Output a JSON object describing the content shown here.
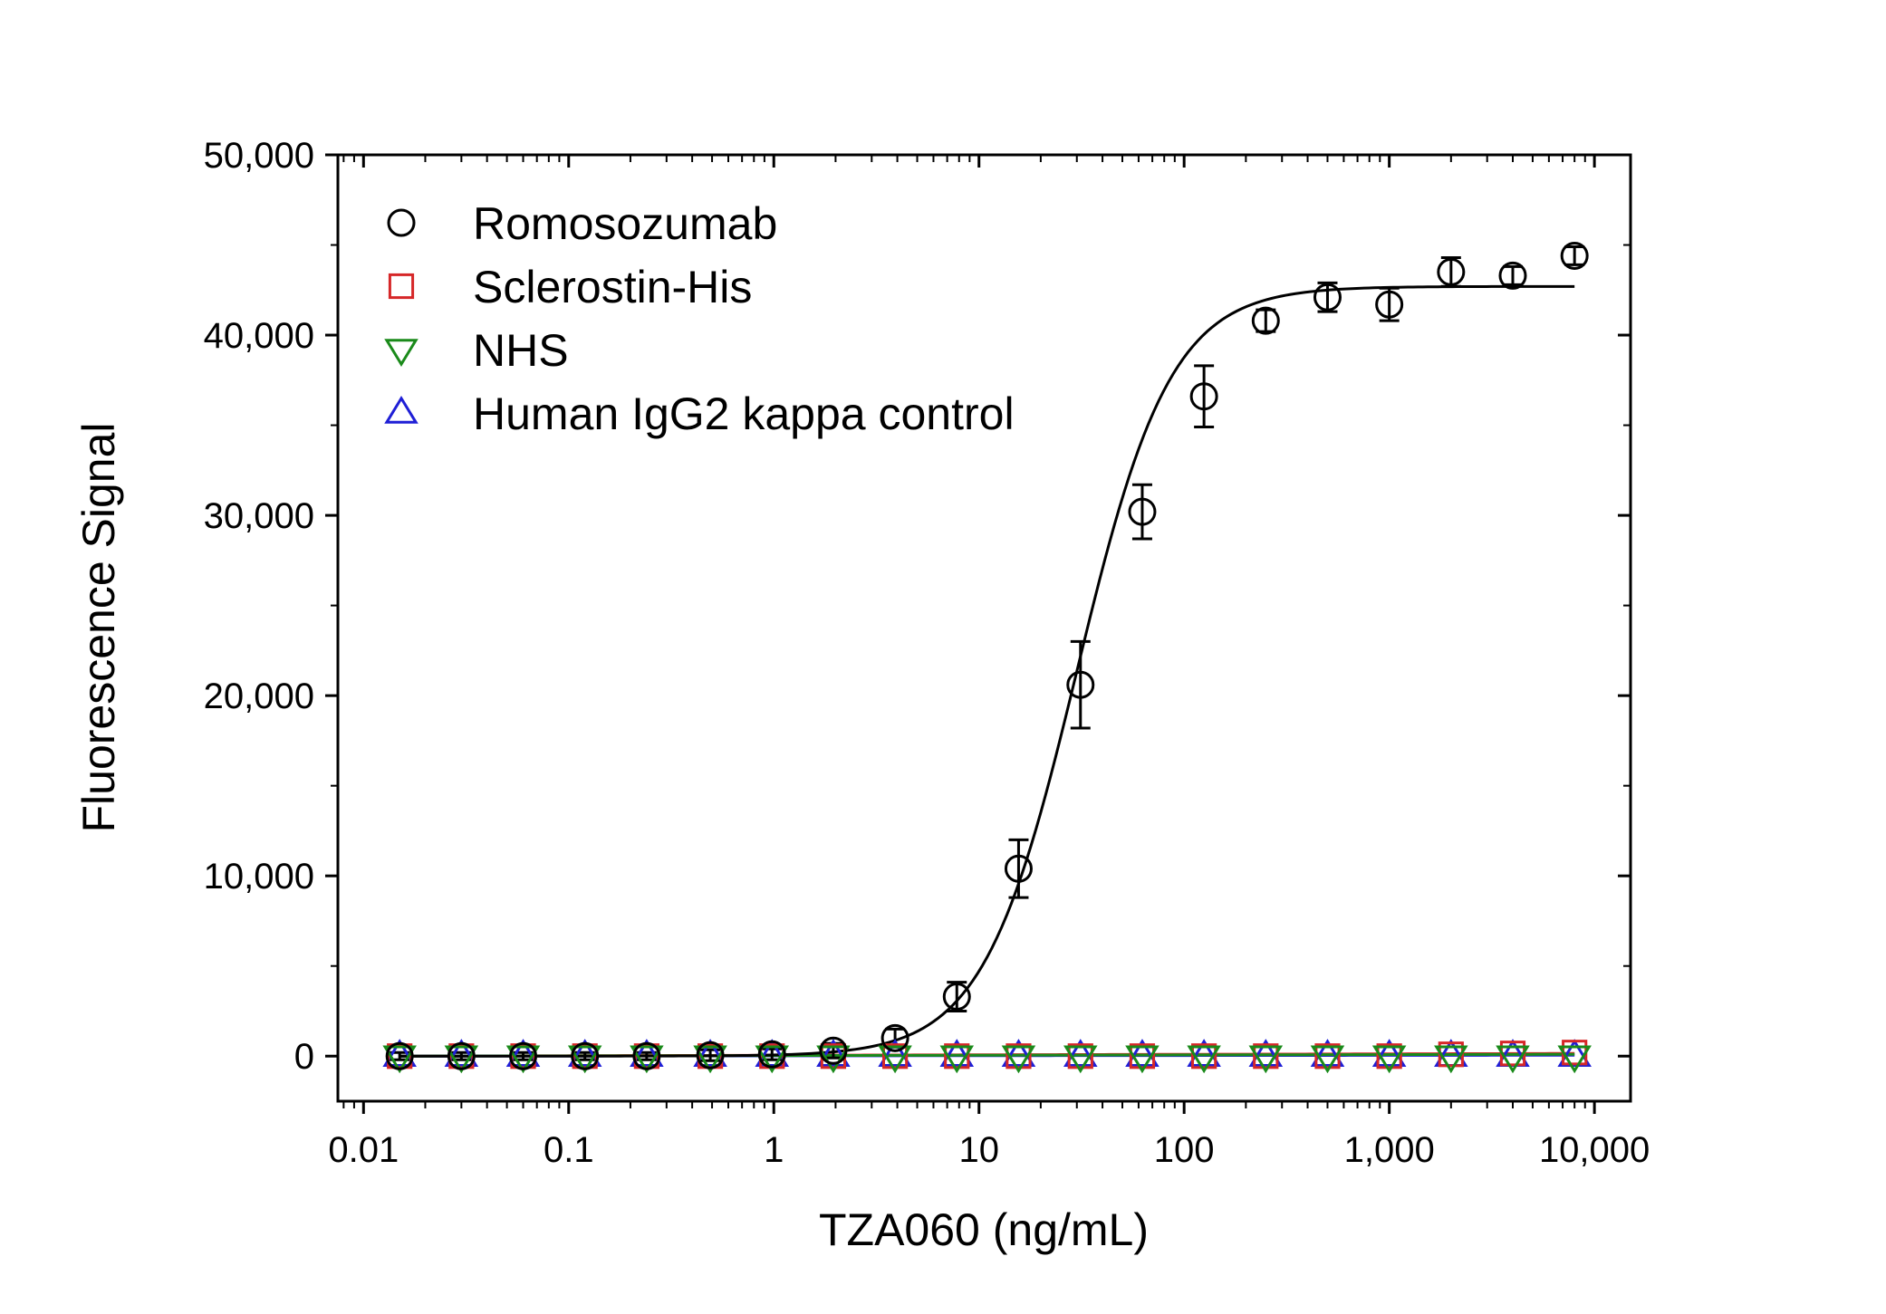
{
  "chart_data": {
    "type": "scatter",
    "title": "",
    "xlabel": "TZA060 (ng/mL)",
    "ylabel": "Fluorescence Signal",
    "xscale": "log",
    "xlim": [
      0.0075,
      15000
    ],
    "ylim": [
      -2500,
      50000
    ],
    "x_ticks": [
      {
        "value": 0.01,
        "label": "0.01"
      },
      {
        "value": 0.1,
        "label": "0.1"
      },
      {
        "value": 1,
        "label": "1"
      },
      {
        "value": 10,
        "label": "10"
      },
      {
        "value": 100,
        "label": "100"
      },
      {
        "value": 1000,
        "label": "1,000"
      },
      {
        "value": 10000,
        "label": "10,000"
      }
    ],
    "y_ticks": [
      {
        "value": 0,
        "label": "0"
      },
      {
        "value": 10000,
        "label": "10,000"
      },
      {
        "value": 20000,
        "label": "20,000"
      },
      {
        "value": 30000,
        "label": "30,000"
      },
      {
        "value": 40000,
        "label": "40,000"
      },
      {
        "value": 50000,
        "label": "50,000"
      }
    ],
    "grid": false,
    "legend_position": "top-left",
    "x": [
      0.015,
      0.03,
      0.06,
      0.12,
      0.24,
      0.49,
      0.98,
      1.95,
      3.9,
      7.8,
      15.6,
      31.25,
      62.5,
      125,
      250,
      500,
      1000,
      2000,
      4000,
      8000
    ],
    "series": [
      {
        "name": "Romosozumab",
        "marker": "circle",
        "color": "#000000",
        "values": [
          0,
          0,
          0,
          0,
          0,
          50,
          100,
          300,
          1000,
          3300,
          10400,
          20600,
          30200,
          36600,
          40800,
          42100,
          41700,
          43500,
          43300,
          44400
        ],
        "errors": [
          200,
          200,
          200,
          200,
          200,
          300,
          300,
          400,
          500,
          800,
          1600,
          2400,
          1500,
          1700,
          600,
          800,
          900,
          800,
          500,
          500
        ],
        "fit": {
          "bottom": 0,
          "top": 42700,
          "ec50": 30,
          "hill": 1.9
        }
      },
      {
        "name": "Sclerostin-His",
        "marker": "square",
        "color": "#d62728",
        "values": [
          0,
          0,
          0,
          0,
          0,
          0,
          0,
          0,
          0,
          0,
          0,
          0,
          0,
          0,
          0,
          0,
          0,
          100,
          150,
          200
        ],
        "fit": {
          "start": 0,
          "end": 150
        }
      },
      {
        "name": "NHS",
        "marker": "triangle-down",
        "color": "#1a8a1a",
        "values": [
          0,
          0,
          0,
          0,
          0,
          0,
          0,
          0,
          0,
          0,
          0,
          0,
          0,
          0,
          0,
          0,
          0,
          0,
          0,
          0
        ],
        "fit": {
          "start": 0,
          "end": 100
        }
      },
      {
        "name": "Human IgG2 kappa control",
        "marker": "triangle-up",
        "color": "#1f1fd6",
        "values": [
          0,
          0,
          0,
          0,
          0,
          0,
          0,
          0,
          0,
          0,
          0,
          0,
          0,
          0,
          0,
          0,
          0,
          0,
          0,
          0
        ],
        "fit": {
          "start": 0,
          "end": 50
        }
      }
    ]
  }
}
